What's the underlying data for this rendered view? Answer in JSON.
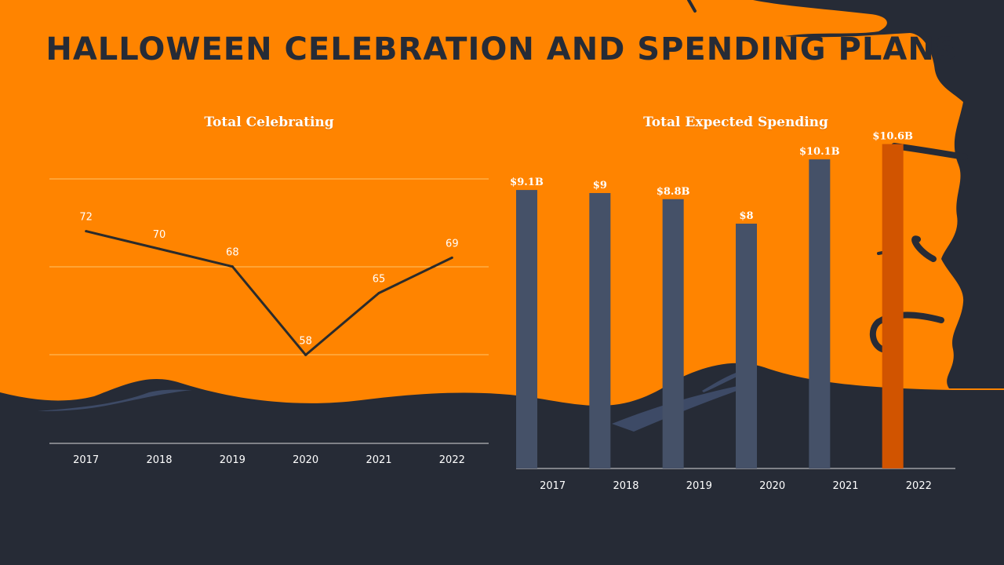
{
  "page_title": "HALLOWEEN CELEBRATION AND SPENDING PLANS",
  "colors": {
    "background": "#ff8400",
    "dark": "#262b36",
    "bar": "#455168",
    "bar_highlight": "#d15400",
    "line": "#2b2b2b",
    "gridline": "#ffc36a",
    "text": "#ffffff"
  },
  "chart_data": [
    {
      "type": "line",
      "title": "Total Celebrating",
      "categories": [
        "2017",
        "2018",
        "2019",
        "2020",
        "2021",
        "2022"
      ],
      "values": [
        72,
        70,
        68,
        58,
        65,
        69
      ],
      "data_labels": [
        "72",
        "70",
        "68",
        "58",
        "65",
        "69"
      ],
      "xlabel": "",
      "ylabel": "",
      "ylim": [
        48,
        78
      ],
      "grid": true
    },
    {
      "type": "bar",
      "title": "Total Expected Spending",
      "categories": [
        "2017",
        "2018",
        "2019",
        "2020",
        "2021",
        "2022"
      ],
      "values": [
        9.1,
        9.0,
        8.8,
        8.0,
        10.1,
        10.6
      ],
      "data_labels": [
        "$9.1B",
        "$9",
        "$8.8B",
        "$8",
        "$10.1B",
        "$10.6B"
      ],
      "highlight_index": 5,
      "xlabel": "",
      "ylabel": "",
      "ylim": [
        0,
        12
      ],
      "grid": false
    }
  ]
}
